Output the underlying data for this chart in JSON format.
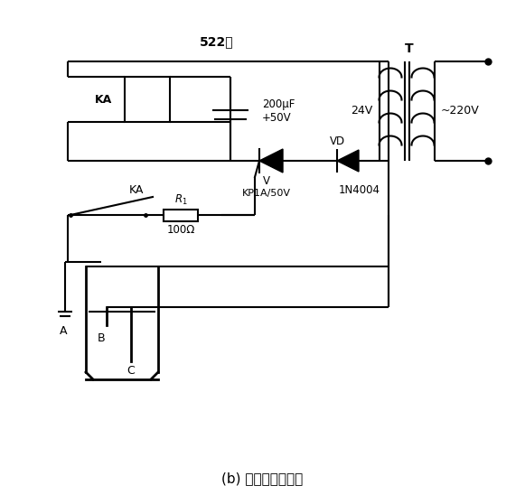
{
  "title": "(b) 晶闸管电路部分",
  "bg_color": "#ffffff",
  "line_color": "#000000",
  "font_color": "#000000",
  "label_522": "522型",
  "label_KA_relay": "KA",
  "label_cap": "200μF\n+50V",
  "label_24V": "24V",
  "label_T": "T",
  "label_220V": "~220V",
  "label_VD": "VD",
  "label_1N4004": "1N4004",
  "label_V": "V",
  "label_KP1A50V": "KP1A/50V",
  "label_R1": "$R_1$",
  "label_100ohm": "100Ω",
  "label_KA_switch": "KA",
  "label_A": "A",
  "label_B": "B",
  "label_C": "C"
}
